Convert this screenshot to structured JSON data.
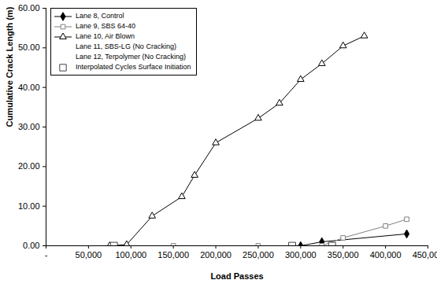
{
  "chart_data": {
    "type": "line",
    "x_label": "Load Passes",
    "y_label": "Cumulative Crack Length (m)",
    "xlim": [
      0,
      450000
    ],
    "xticks": [
      {
        "value": 0,
        "label": "-"
      },
      {
        "value": 50000,
        "label": "50,000"
      },
      {
        "value": 100000,
        "label": "100,000"
      },
      {
        "value": 150000,
        "label": "150,000"
      },
      {
        "value": 200000,
        "label": "200,000"
      },
      {
        "value": 250000,
        "label": "250,000"
      },
      {
        "value": 300000,
        "label": "300,000"
      },
      {
        "value": 350000,
        "label": "350,000"
      },
      {
        "value": 400000,
        "label": "400,000"
      },
      {
        "value": 450000,
        "label": "450,000"
      }
    ],
    "ylim": [
      0,
      60
    ],
    "yticks": [
      {
        "value": 0,
        "label": "0.00"
      },
      {
        "value": 10,
        "label": "10.00"
      },
      {
        "value": 20,
        "label": "20.00"
      },
      {
        "value": 30,
        "label": "30.00"
      },
      {
        "value": 40,
        "label": "40.00"
      },
      {
        "value": 50,
        "label": "50.00"
      },
      {
        "value": 60,
        "label": "60.00"
      }
    ],
    "grid": false,
    "legend": "top-left",
    "series": [
      {
        "name": "Lane 8, Control",
        "color": "#000000",
        "marker": "diamond",
        "line_style": "solid",
        "x": [
          300000,
          325000,
          425000
        ],
        "values": [
          0,
          1.0,
          3.0
        ]
      },
      {
        "name": "Lane 9, SBS 64-40",
        "color": "#808080",
        "marker": "open_square",
        "line_style": "solid",
        "x": [
          150000,
          250000,
          325000,
          350000,
          400000,
          425000
        ],
        "values": [
          0,
          0,
          0,
          2.0,
          5.0,
          6.7
        ]
      },
      {
        "name": "Lane 10, Air Blown",
        "color": "#000000",
        "marker": "open_triangle",
        "line_style": "solid",
        "x": [
          75000,
          95000,
          125000,
          160000,
          175000,
          200000,
          250000,
          275000,
          300000,
          325000,
          350000,
          375000
        ],
        "values": [
          0,
          0.3,
          7.5,
          12.4,
          17.8,
          26.0,
          32.2,
          36.0,
          42.0,
          46.0,
          50.5,
          53.0
        ]
      },
      {
        "name": "Lane 11, SBS-LG (No Cracking)",
        "marker": "none",
        "line_style": "none",
        "x": [],
        "values": []
      },
      {
        "name": "Lane 12, Terpolymer (No Cracking)",
        "marker": "none",
        "line_style": "none",
        "x": [],
        "values": []
      },
      {
        "name": "Interpolated Cycles Surface Initiation",
        "color": "#404040",
        "marker": "open_square",
        "line_style": "none",
        "x": [
          80000,
          290000,
          337000
        ],
        "values": [
          0,
          0,
          0
        ]
      }
    ]
  }
}
